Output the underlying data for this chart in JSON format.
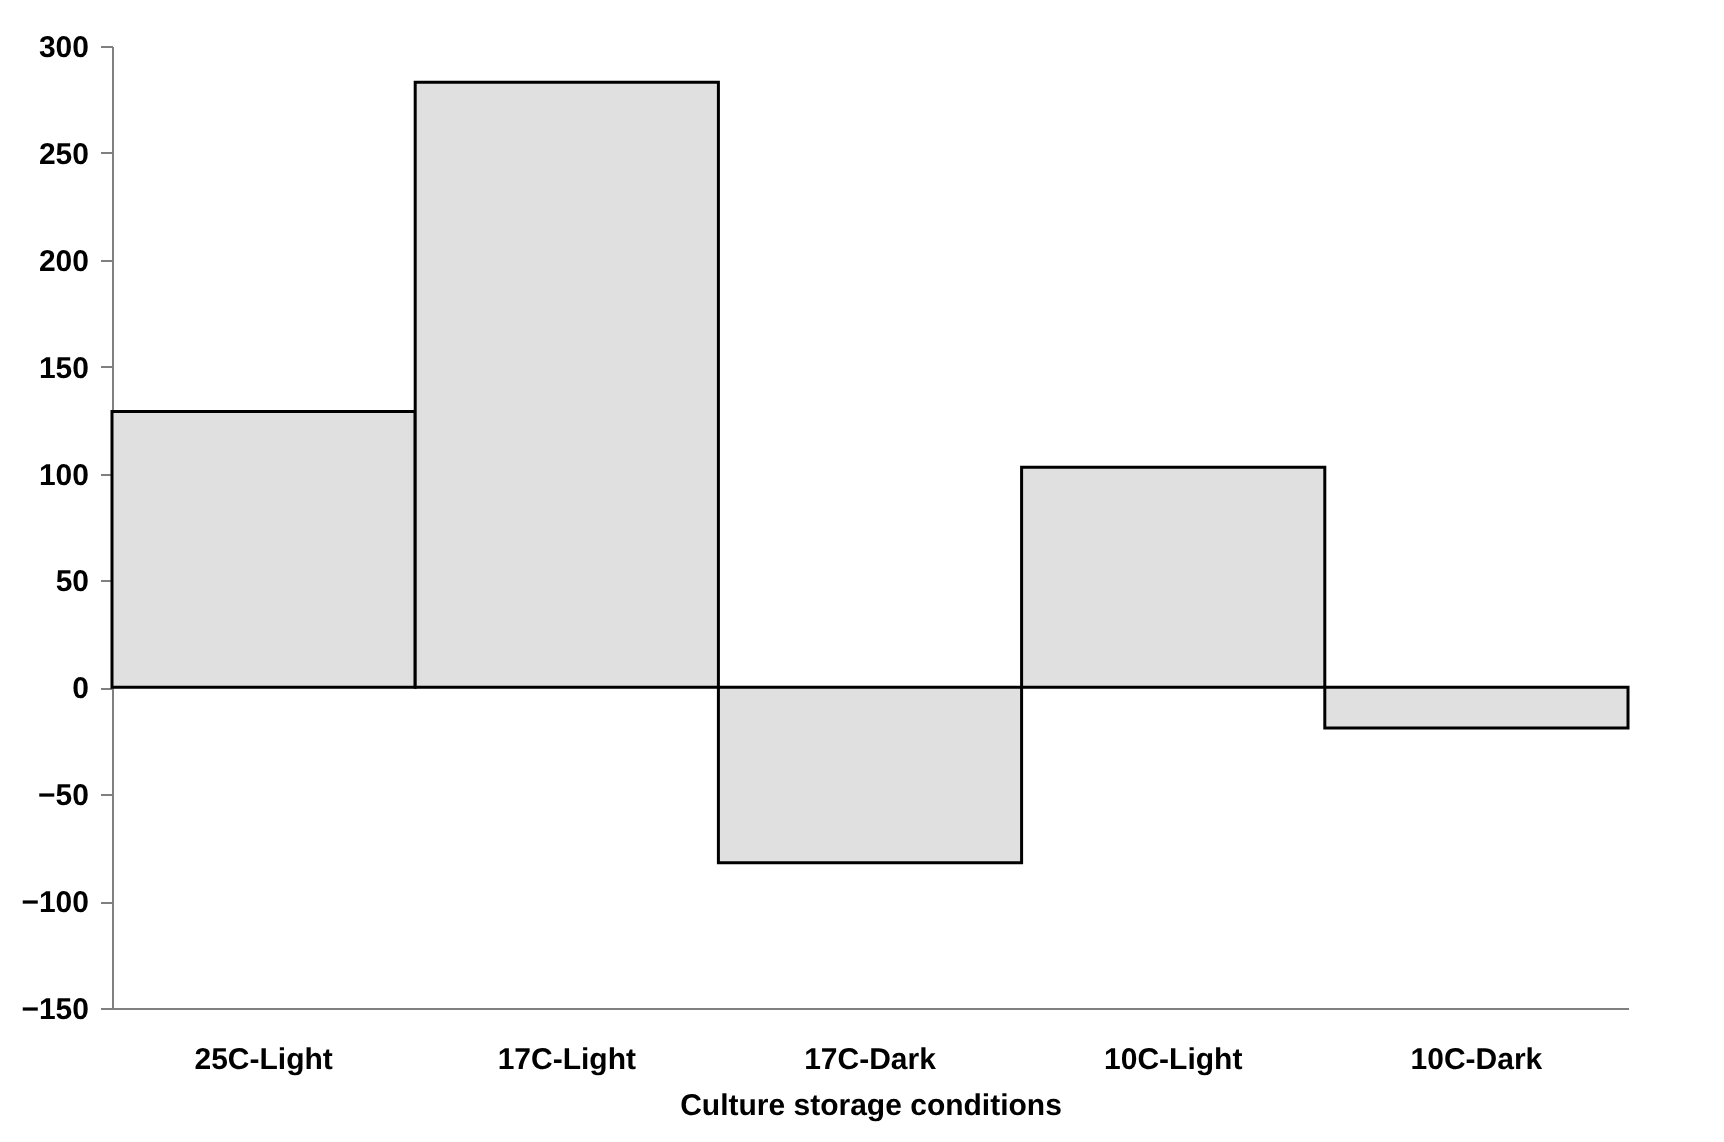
{
  "chart_data": {
    "type": "bar",
    "xlabel": "Culture storage conditions",
    "categories": [
      "25C-Light",
      "17C-Light",
      "17C-Dark",
      "10C-Light",
      "10C-Dark"
    ],
    "values": [
      129,
      283,
      -82,
      103,
      -19
    ],
    "color": "#e0e0e0",
    "ylim": [
      -150,
      300
    ],
    "yticks": [
      -150,
      -100,
      -50,
      0,
      50,
      100,
      150,
      200,
      250,
      300
    ],
    "grid": false
  }
}
